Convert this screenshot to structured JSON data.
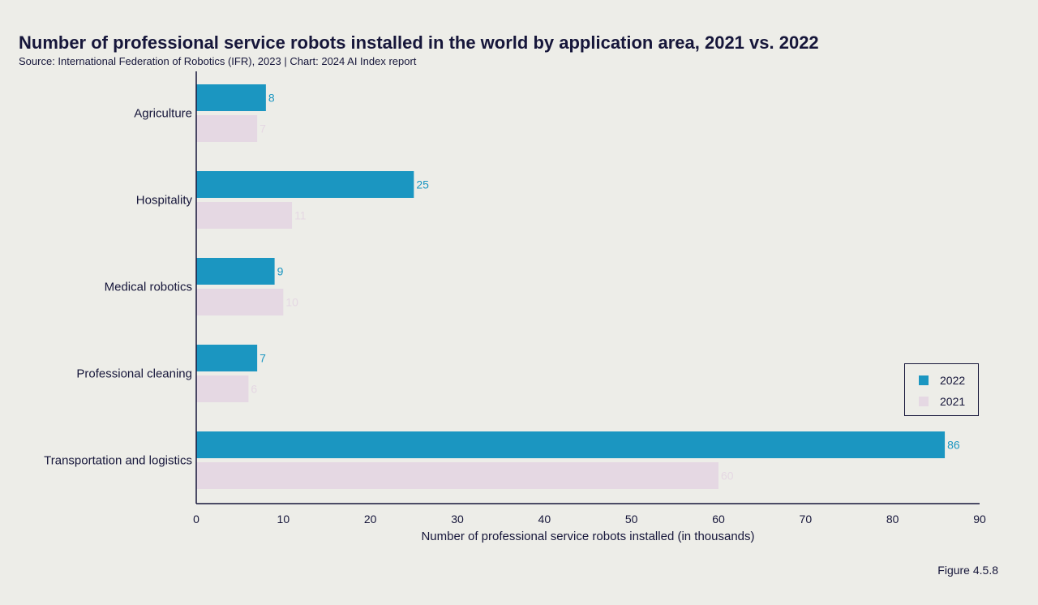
{
  "title": "Number of professional service robots installed in the world by application area, 2021 vs. 2022",
  "subtitle": "Source: International Federation of Robotics (IFR), 2023 | Chart: 2024 AI Index report",
  "figure_label": "Figure 4.5.8",
  "colors": {
    "s2022": "#1b96c1",
    "s2021": "#e5d8e3",
    "axis": "#16163a",
    "text": "#16163a"
  },
  "chart_data": {
    "type": "bar",
    "orientation": "horizontal",
    "title": "Number of professional service robots installed in the world by application area, 2021 vs. 2022",
    "subtitle": "Source: International Federation of Robotics (IFR), 2023 | Chart: 2024 AI Index report",
    "categories": [
      "Agriculture",
      "Hospitality",
      "Medical robotics",
      "Professional cleaning",
      "Transportation and logistics"
    ],
    "series": [
      {
        "name": "2022",
        "values": [
          8,
          25,
          9,
          7,
          86
        ]
      },
      {
        "name": "2021",
        "values": [
          7,
          11,
          10,
          6,
          60
        ]
      }
    ],
    "xlabel": "Number of professional service robots installed (in thousands)",
    "ylabel": "",
    "xlim": [
      0,
      90
    ],
    "xticks": [
      0,
      10,
      20,
      30,
      40,
      50,
      60,
      70,
      80,
      90
    ],
    "grid": false,
    "legend": "right"
  }
}
